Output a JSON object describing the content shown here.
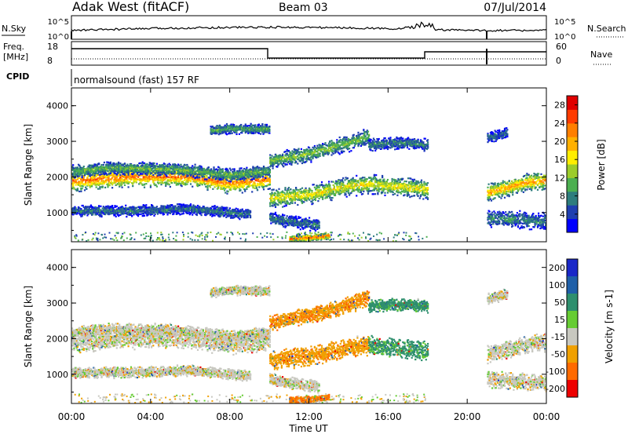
{
  "header": {
    "title": "Adak West (fitACF)",
    "beam": "Beam 03",
    "date": "07/Jul/2014"
  },
  "summary_panels": {
    "nsky_label": "N.Sky",
    "nsearch_label": "N.Search",
    "nsky_ticks": [
      "10^5",
      "10^0"
    ],
    "freq_label_line1": "Freq.",
    "freq_label_line2": "[MHz]",
    "freq_ticks": [
      "18",
      "8"
    ],
    "nave_label": "Nave",
    "nave_ticks": [
      "60",
      "0"
    ],
    "cpid_label": "CPID",
    "cpid_value": "normalsound (fast) 157 RF"
  },
  "chart_data": [
    {
      "type": "heatmap",
      "title": "",
      "xlabel": "",
      "ylabel": "Slant Range [km]",
      "x_ticks": [
        "00:00",
        "04:00",
        "08:00",
        "12:00",
        "16:00",
        "20:00",
        "00:00"
      ],
      "y_ticks": [
        "1000",
        "2000",
        "3000",
        "4000"
      ],
      "xlim": [
        0,
        24
      ],
      "ylim": [
        180,
        4500
      ],
      "colorbar_label": "Power [dB]",
      "colorbar_ticks": [
        "4",
        "8",
        "12",
        "16",
        "20",
        "24",
        "28"
      ],
      "colorbar_range": [
        0,
        30
      ],
      "colors": [
        "#0000ff",
        "#1f3fb0",
        "#2e7d7d",
        "#4caf50",
        "#9ccc2a",
        "#ffee00",
        "#ffb000",
        "#ff7f00",
        "#ff3b00",
        "#e00000"
      ],
      "bands": [
        {
          "x": [
            0.0,
            3.0,
            6.0,
            8.0,
            10.0
          ],
          "y": [
            1880,
            2000,
            2000,
            1820,
            1950
          ],
          "width": 260,
          "core_db": 22
        },
        {
          "x": [
            0.0,
            2.0,
            5.0,
            8.0,
            10.0
          ],
          "y": [
            2150,
            2250,
            2220,
            2060,
            2150
          ],
          "width": 170,
          "core_db": 11
        },
        {
          "x": [
            0.0,
            3.0,
            6.0,
            9.0
          ],
          "y": [
            1050,
            1050,
            1100,
            950
          ],
          "width": 140,
          "core_db": 7
        },
        {
          "x": [
            7.0,
            8.0,
            10.0
          ],
          "y": [
            3300,
            3350,
            3350
          ],
          "width": 130,
          "core_db": 10
        },
        {
          "x": [
            10.0,
            12.0,
            14.0,
            15.0,
            17.0,
            18.0
          ],
          "y": [
            1400,
            1500,
            1750,
            1800,
            1700,
            1650
          ],
          "width": 250,
          "core_db": 16
        },
        {
          "x": [
            10.0,
            12.0,
            14.0,
            15.0
          ],
          "y": [
            2450,
            2650,
            2950,
            3150
          ],
          "width": 210,
          "core_db": 12
        },
        {
          "x": [
            15.0,
            16.0,
            17.0,
            18.0
          ],
          "y": [
            2900,
            2950,
            2950,
            2900
          ],
          "width": 160,
          "core_db": 8
        },
        {
          "x": [
            10.0,
            11.0,
            12.5
          ],
          "y": [
            850,
            750,
            650
          ],
          "width": 160,
          "core_db": 7
        },
        {
          "x": [
            11.0,
            12.0,
            13.0
          ],
          "y": [
            260,
            300,
            340
          ],
          "width": 90,
          "core_db": 24
        },
        {
          "x": [
            21.0,
            22.0,
            23.0,
            24.0
          ],
          "y": [
            1550,
            1700,
            1850,
            1900
          ],
          "width": 230,
          "core_db": 20
        },
        {
          "x": [
            21.0,
            22.5,
            24.0
          ],
          "y": [
            850,
            800,
            750
          ],
          "width": 220,
          "core_db": 8
        },
        {
          "x": [
            21.0,
            22.0
          ],
          "y": [
            3100,
            3250
          ],
          "width": 140,
          "core_db": 6
        }
      ]
    },
    {
      "type": "heatmap",
      "title": "",
      "xlabel": "Time UT",
      "ylabel": "Slant Range [km]",
      "x_ticks": [
        "00:00",
        "04:00",
        "08:00",
        "12:00",
        "16:00",
        "20:00",
        "00:00"
      ],
      "y_ticks": [
        "1000",
        "2000",
        "3000",
        "4000"
      ],
      "xlim": [
        0,
        24
      ],
      "ylim": [
        180,
        4500
      ],
      "colorbar_label": "Velocity [m s-1]",
      "colorbar_ticks": [
        "200",
        "100",
        "50",
        "15",
        "-15",
        "-50",
        "-100",
        "-200"
      ],
      "colors": [
        "#1a28c8",
        "#1f5fa8",
        "#2e8f6e",
        "#66cc33",
        "#c8c8c0",
        "#f0a000",
        "#ff6a00",
        "#ee0000"
      ],
      "bands": [
        {
          "x": [
            0.0,
            3.0,
            6.0,
            8.0,
            10.0
          ],
          "y": [
            1880,
            2000,
            2000,
            1820,
            1950
          ],
          "width": 260,
          "vel": 0
        },
        {
          "x": [
            0.0,
            2.0,
            5.0,
            8.0,
            10.0
          ],
          "y": [
            2150,
            2250,
            2220,
            2060,
            2150
          ],
          "width": 170,
          "vel": 0
        },
        {
          "x": [
            0.0,
            3.0,
            6.0,
            9.0
          ],
          "y": [
            1050,
            1050,
            1100,
            950
          ],
          "width": 140,
          "vel": 0
        },
        {
          "x": [
            7.0,
            8.0,
            10.0
          ],
          "y": [
            3300,
            3350,
            3350
          ],
          "width": 130,
          "vel": 0
        },
        {
          "x": [
            10.0,
            12.0,
            14.0,
            15.0
          ],
          "y": [
            1400,
            1500,
            1750,
            1800
          ],
          "width": 250,
          "vel": -35
        },
        {
          "x": [
            15.0,
            17.0,
            18.0
          ],
          "y": [
            1800,
            1700,
            1650
          ],
          "width": 250,
          "vel": 40
        },
        {
          "x": [
            10.0,
            12.0,
            14.0,
            15.0
          ],
          "y": [
            2450,
            2650,
            2950,
            3150
          ],
          "width": 210,
          "vel": -40
        },
        {
          "x": [
            15.0,
            16.0,
            17.0,
            18.0
          ],
          "y": [
            2900,
            2950,
            2950,
            2900
          ],
          "width": 160,
          "vel": 45
        },
        {
          "x": [
            10.0,
            11.0,
            12.5
          ],
          "y": [
            850,
            750,
            650
          ],
          "width": 160,
          "vel": 0
        },
        {
          "x": [
            11.0,
            12.0,
            13.0
          ],
          "y": [
            260,
            300,
            340
          ],
          "width": 90,
          "vel": -60
        },
        {
          "x": [
            21.0,
            22.0,
            23.0,
            24.0
          ],
          "y": [
            1550,
            1700,
            1850,
            1900
          ],
          "width": 230,
          "vel": 0
        },
        {
          "x": [
            21.0,
            22.5,
            24.0
          ],
          "y": [
            850,
            800,
            750
          ],
          "width": 220,
          "vel": 0
        },
        {
          "x": [
            21.0,
            22.0
          ],
          "y": [
            3100,
            3250
          ],
          "width": 140,
          "vel": 0
        }
      ]
    }
  ]
}
